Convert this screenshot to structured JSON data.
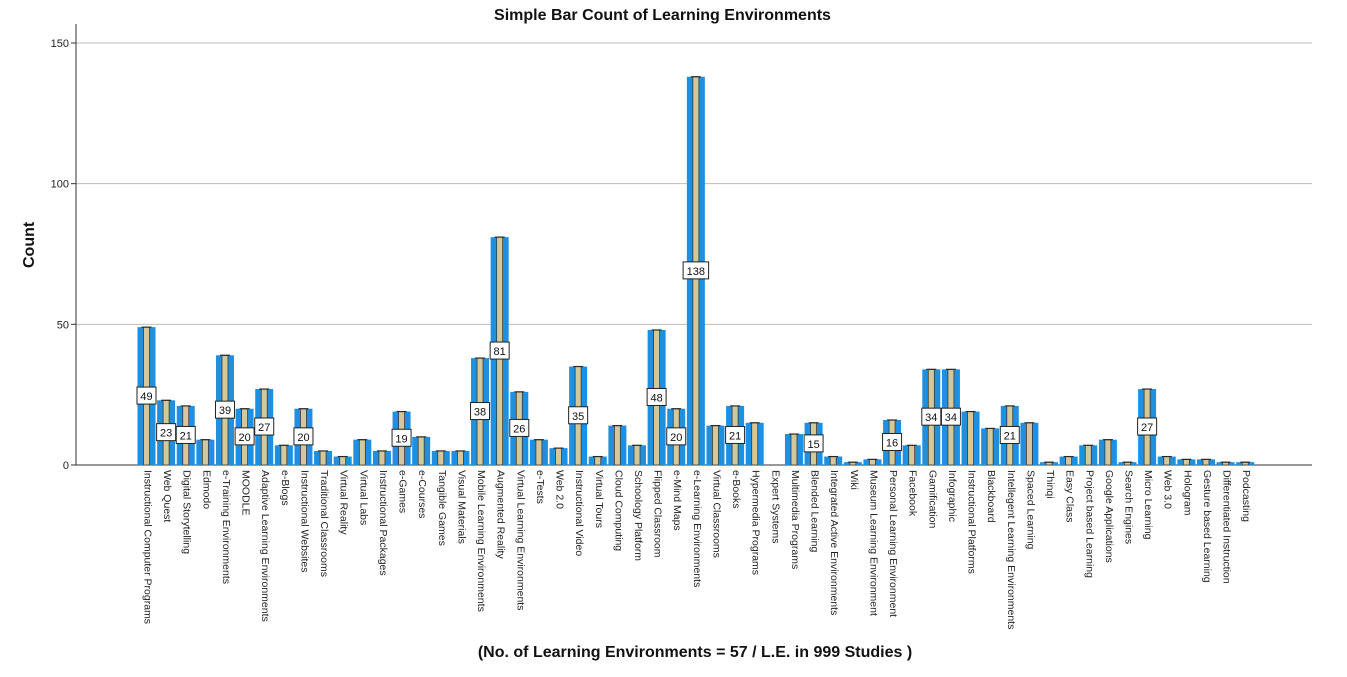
{
  "chart_data": {
    "type": "bar",
    "title": "Simple Bar Count of Learning Environments",
    "ylabel": "Count",
    "xlabel": "(No. of Learning Environments = 57 / L.E. in 999 Studies )",
    "ylim": [
      0,
      150
    ],
    "yticks": [
      0,
      50,
      100,
      150
    ],
    "grid": true,
    "legend": "none",
    "colors": {
      "bar": "#1f8fe0",
      "bar_inner": "#d2c89a",
      "grid": "#bcbcbc"
    },
    "categories": [
      "Instructional Computer Programs",
      "Web Quest",
      "Digital Storytelling",
      "Edmodo",
      "e-Training Environments",
      "MOODLE",
      "Adaptive Learning Environments",
      "e-Blogs",
      "Instructional Websites",
      "Traditional Classrooms",
      "Virtual Reality",
      "Virtual Labs",
      "Instructional Packages",
      "e-Games",
      "e-Courses",
      "Tangible Games",
      "Visual Materials",
      "Mobile Learning Environments",
      "Augmented Reality",
      "Virtual Learning Environments",
      "e-Tests",
      "Web 2.0",
      "Instructional Video",
      "Virtual Tours",
      "Cloud Computing",
      "Schoology Platform",
      "Flipped Classroom",
      "e-Mind Maps",
      "e-Learning Environments",
      "Virtual Classrooms",
      "e-Books",
      "Hypermedia Programs",
      "Expert Systems",
      "Multimedia Programs",
      "Blended Learning",
      "Integrated Active Environments",
      "Wiki",
      "Museum Learning Environment",
      "Personal Learning Environment",
      "Facebook",
      "Gamification",
      "Infographic",
      "Instructional Platforms",
      "Blackboard",
      "Intellegent Learning Environments",
      "Spaced Learning",
      "Thinqi",
      "Easy Class",
      "Project based Learning",
      "Google Applications",
      "Search Engines",
      "Micro Learning",
      "Web 3.0",
      "Hologram",
      "Gesture based Learning",
      "Differentiated Instruction",
      "Podcasting"
    ],
    "values": [
      49,
      23,
      21,
      9,
      39,
      20,
      27,
      7,
      20,
      5,
      3,
      9,
      5,
      19,
      10,
      5,
      5,
      38,
      81,
      26,
      9,
      6,
      35,
      3,
      14,
      7,
      48,
      20,
      138,
      14,
      21,
      15,
      0,
      11,
      15,
      3,
      1,
      2,
      16,
      7,
      34,
      34,
      19,
      13,
      21,
      15,
      1,
      3,
      7,
      9,
      1,
      27,
      3,
      2,
      2,
      1,
      1
    ],
    "data_labels": [
      {
        "category": "Instructional Computer Programs",
        "text": "49"
      },
      {
        "category": "Web Quest",
        "text": "23"
      },
      {
        "category": "Digital Storytelling",
        "text": "21"
      },
      {
        "category": "e-Training Environments",
        "text": "39"
      },
      {
        "category": "MOODLE",
        "text": "20"
      },
      {
        "category": "Adaptive Learning Environments",
        "text": "27"
      },
      {
        "category": "Instructional Websites",
        "text": "20"
      },
      {
        "category": "e-Games",
        "text": "19"
      },
      {
        "category": "Mobile Learning Environments",
        "text": "38"
      },
      {
        "category": "Augmented Reality",
        "text": "81"
      },
      {
        "category": "Virtual Learning Environments",
        "text": "26"
      },
      {
        "category": "Instructional Video",
        "text": "35"
      },
      {
        "category": "Flipped Classroom",
        "text": "48"
      },
      {
        "category": "e-Mind Maps",
        "text": "20"
      },
      {
        "category": "e-Learning Environments",
        "text": "138"
      },
      {
        "category": "e-Books",
        "text": "21"
      },
      {
        "category": "Blended Learning",
        "text": "15"
      },
      {
        "category": "Personal Learning Environment",
        "text": "16"
      },
      {
        "category": "Gamification",
        "text": "34"
      },
      {
        "category": "Infographic",
        "text": "34"
      },
      {
        "category": "Intellegent Learning Environments",
        "text": "21"
      },
      {
        "category": "Micro Learning",
        "text": "27"
      }
    ]
  }
}
